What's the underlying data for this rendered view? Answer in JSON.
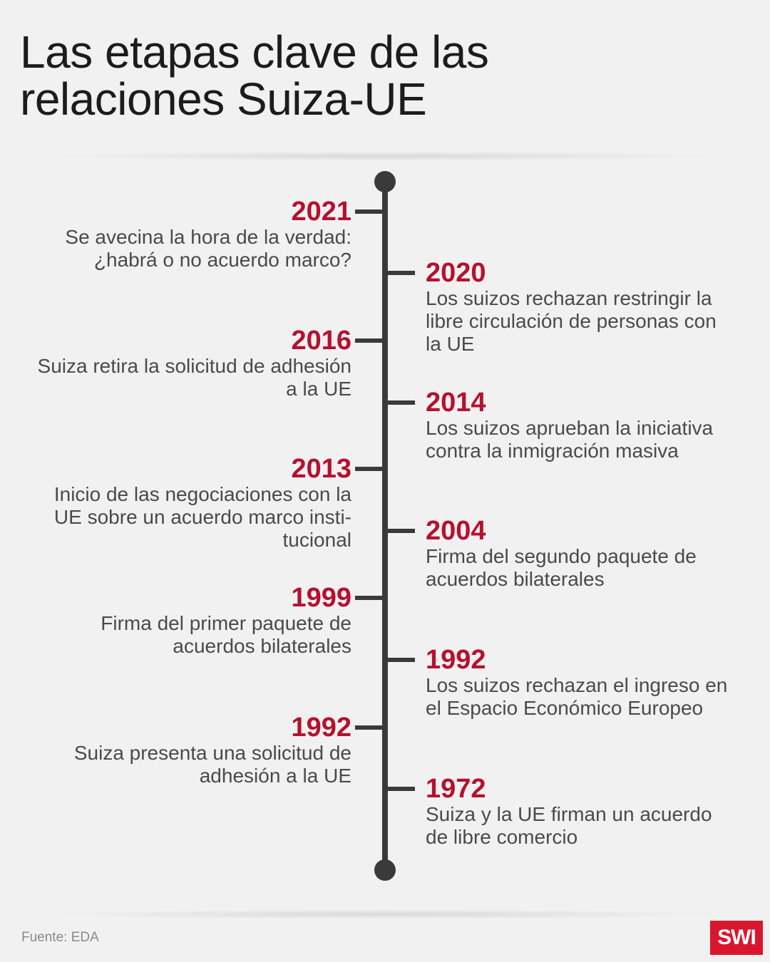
{
  "title": {
    "line1": "Las etapas clave de las",
    "line2": "relaciones Suiza-UE"
  },
  "events": [
    {
      "year": "2021",
      "side": "left",
      "desc": "Se avecina la hora de la verdad:\n¿habrá o no acuerdo marco?"
    },
    {
      "year": "2020",
      "side": "right",
      "desc": "Los suizos rechazan restringir la\nlibre circulación de personas con\nla UE"
    },
    {
      "year": "2016",
      "side": "left",
      "desc": "Suiza retira la solicitud de adhesión\na la UE"
    },
    {
      "year": "2014",
      "side": "right",
      "desc": "Los suizos aprueban la iniciativa\ncontra la inmigración masiva"
    },
    {
      "year": "2013",
      "side": "left",
      "desc": "Inicio de las negociaciones con la\nUE sobre un acuerdo marco insti-\ntucional"
    },
    {
      "year": "2004",
      "side": "right",
      "desc": "Firma del segundo paquete de\nacuerdos bilaterales"
    },
    {
      "year": "1999",
      "side": "left",
      "desc": "Firma del primer paquete de\nacuerdos bilaterales"
    },
    {
      "year": "1992",
      "side": "right",
      "desc": "Los suizos rechazan el ingreso en\nel Espacio Económico Europeo"
    },
    {
      "year": "1992",
      "side": "left",
      "desc": "Suiza presenta una solicitud de\nadhesión a la UE"
    },
    {
      "year": "1972",
      "side": "right",
      "desc": "Suiza y la UE firman un acuerdo\nde libre comercio"
    }
  ],
  "source": "Fuente:  EDA",
  "logo": "SWI",
  "colors": {
    "accent": "#b5112f",
    "line": "#3a3a3a",
    "logo_bg": "#d8172e"
  }
}
